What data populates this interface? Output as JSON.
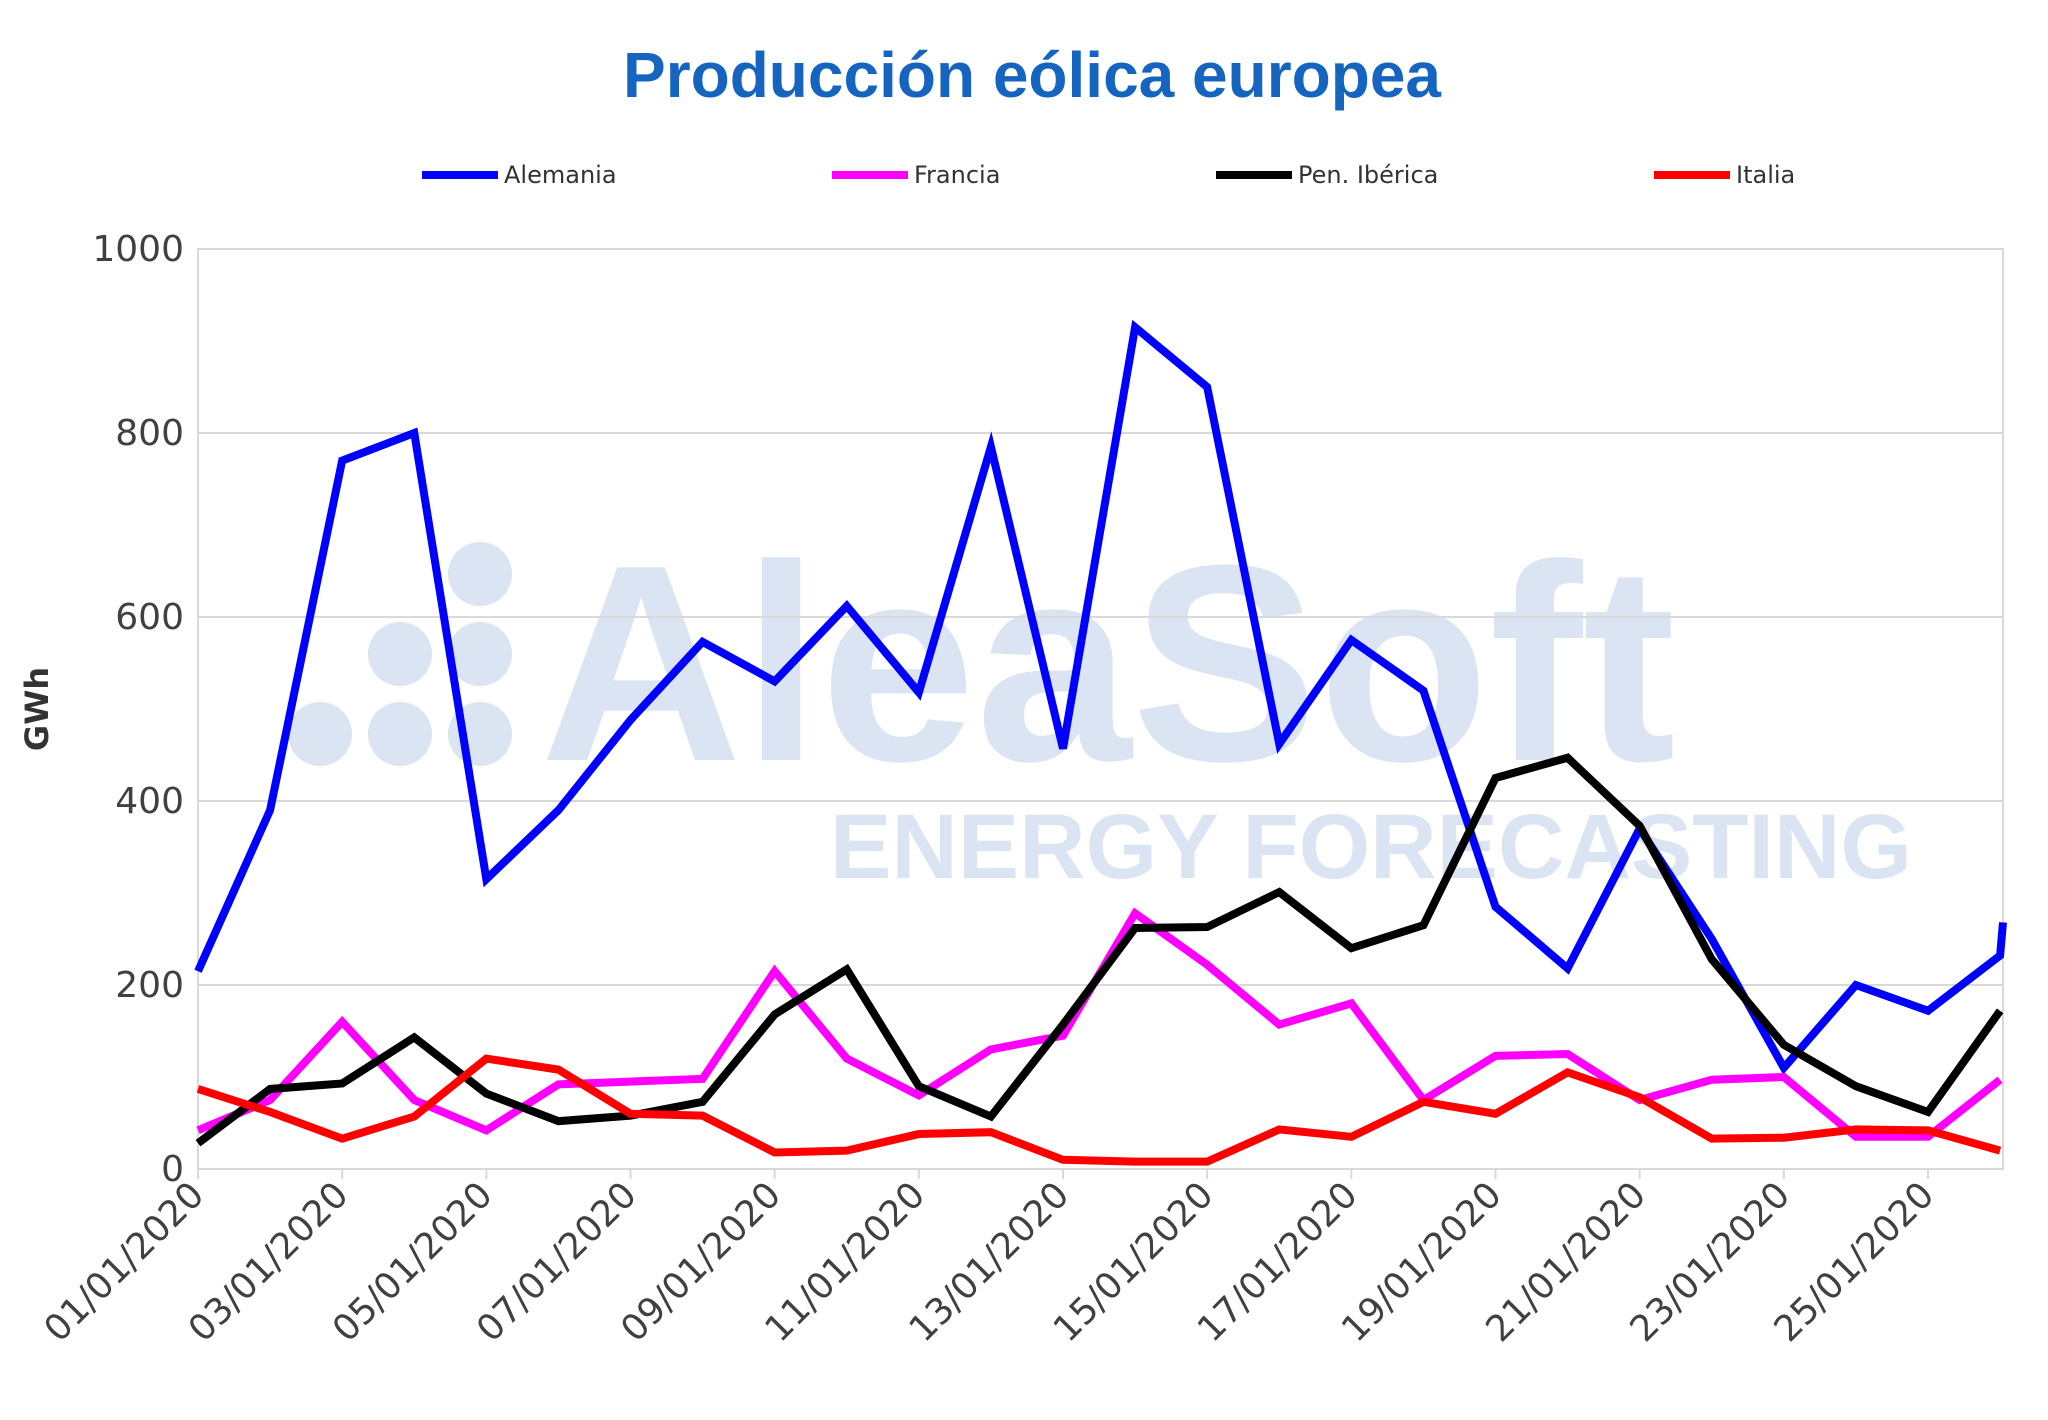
{
  "watermark": {
    "brand": "AleaSoft",
    "tagline": "ENERGY FORECASTING"
  },
  "chart_data": {
    "type": "line",
    "title": "Producción eólica europea",
    "xlabel": "",
    "ylabel": "GWh",
    "ylim": [
      0,
      1000
    ],
    "yticks": [
      "0",
      "200",
      "400",
      "600",
      "800",
      "1000"
    ],
    "grid": "horizontal",
    "legend_position": "top",
    "x": [
      "01/01/2020",
      "02/01/2020",
      "03/01/2020",
      "04/01/2020",
      "05/01/2020",
      "06/01/2020",
      "07/01/2020",
      "08/01/2020",
      "09/01/2020",
      "10/01/2020",
      "11/01/2020",
      "12/01/2020",
      "13/01/2020",
      "14/01/2020",
      "15/01/2020",
      "16/01/2020",
      "17/01/2020",
      "18/01/2020",
      "19/01/2020",
      "20/01/2020",
      "21/01/2020",
      "22/01/2020",
      "23/01/2020",
      "24/01/2020",
      "25/01/2020",
      "26/01/2020"
    ],
    "xtick_labels": [
      "01/01/2020",
      "03/01/2020",
      "05/01/2020",
      "07/01/2020",
      "09/01/2020",
      "11/01/2020",
      "13/01/2020",
      "15/01/2020",
      "17/01/2020",
      "19/01/2020",
      "21/01/2020",
      "23/01/2020",
      "25/01/2020"
    ],
    "series": [
      {
        "name": "Alemania",
        "color": "#0000ff",
        "values": [
          215,
          390,
          770,
          800,
          315,
          390,
          488,
          573,
          530,
          612,
          518,
          785,
          457,
          915,
          850,
          462,
          575,
          520,
          285,
          218,
          370,
          250,
          110,
          200,
          172,
          232
        ],
        "tail": 268
      },
      {
        "name": "Francia",
        "color": "#ff00ff",
        "values": [
          42,
          75,
          160,
          75,
          42,
          92,
          95,
          98,
          215,
          120,
          80,
          130,
          145,
          278,
          222,
          157,
          180,
          75,
          123,
          125,
          75,
          97,
          100,
          35,
          35,
          97
        ]
      },
      {
        "name": "Pen. Ibérica",
        "color": "#000000",
        "values": [
          28,
          87,
          93,
          143,
          82,
          52,
          58,
          73,
          168,
          217,
          90,
          57,
          157,
          262,
          263,
          301,
          240,
          265,
          425,
          447,
          373,
          228,
          135,
          90,
          62,
          172
        ]
      },
      {
        "name": "Italia",
        "color": "#ff0000",
        "values": [
          87,
          62,
          33,
          57,
          120,
          108,
          60,
          58,
          18,
          20,
          38,
          40,
          10,
          8,
          8,
          43,
          35,
          73,
          60,
          105,
          78,
          33,
          34,
          43,
          42,
          20
        ]
      }
    ]
  }
}
